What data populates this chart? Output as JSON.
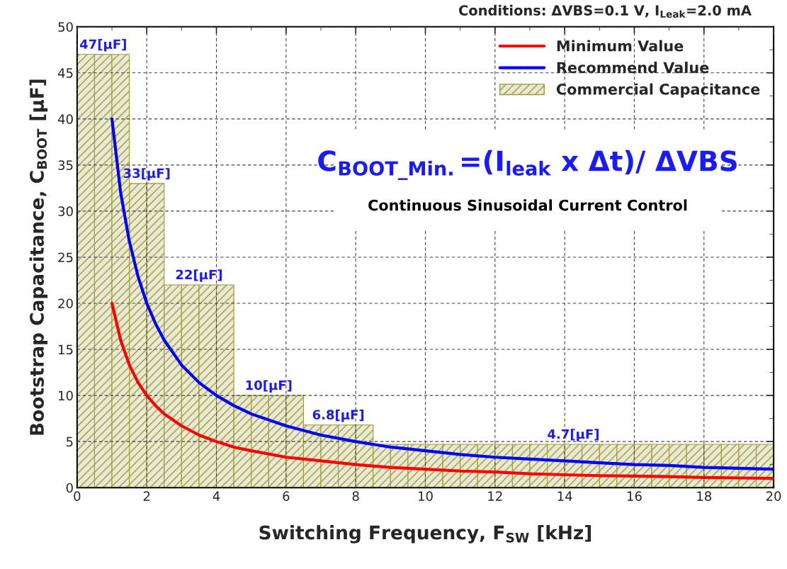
{
  "chart_data": {
    "type": "line",
    "title": "Conditions: ΔVBS=0.1 V, I$_{Leak}$=2.0 mA",
    "xlabel": "Switching Frequency, F$_{SW}$ [kHz]",
    "ylabel": "Bootstrap Capacitance, C$_{BOOT}$ [μF]",
    "series": [
      {
        "name": "Commercial Capacitance",
        "type": "histogram",
        "color": "#9a9a3a",
        "bins": [
          0,
          0.5,
          1,
          1.5,
          2,
          2.5,
          3,
          3.5,
          4,
          4.5,
          5,
          5.5,
          6,
          6.5,
          7,
          7.5,
          8,
          8.5,
          9,
          9.5,
          10,
          10.5,
          11,
          11.5,
          12,
          12.5,
          13,
          13.5,
          14,
          14.5,
          15,
          15.5,
          16,
          16.5,
          17,
          17.5,
          18,
          18.5,
          19,
          19.5,
          20
        ],
        "values": [
          47,
          47,
          47,
          33,
          33,
          22,
          22,
          22,
          22,
          10,
          10,
          10,
          10,
          6.8,
          6.8,
          6.8,
          6.8,
          4.7,
          4.7,
          4.7,
          4.7,
          4.7,
          4.7,
          4.7,
          4.7,
          4.7,
          4.7,
          4.7,
          4.7,
          4.7,
          4.7,
          4.7,
          4.7,
          4.7,
          4.7,
          4.7,
          4.7,
          4.7,
          4.7,
          4.7
        ]
      },
      {
        "name": "Minimum Value",
        "color": "#ff0000",
        "x": [
          1,
          1.25,
          1.5,
          1.75,
          2,
          2.25,
          2.5,
          3,
          3.5,
          4,
          4.5,
          5,
          6,
          7,
          8,
          9,
          10,
          11,
          12,
          13,
          14,
          15,
          16,
          17,
          18,
          19,
          20
        ],
        "values": [
          20,
          16,
          13.3,
          11.4,
          10,
          8.9,
          8,
          6.7,
          5.7,
          5,
          4.4,
          4,
          3.3,
          2.9,
          2.5,
          2.2,
          2,
          1.8,
          1.7,
          1.5,
          1.4,
          1.3,
          1.25,
          1.2,
          1.1,
          1.05,
          1.0
        ]
      },
      {
        "name": "Recommend Value",
        "color": "#0000ff",
        "x": [
          1,
          1.25,
          1.5,
          1.75,
          2,
          2.25,
          2.5,
          3,
          3.5,
          4,
          4.5,
          5,
          6,
          7,
          8,
          9,
          10,
          11,
          12,
          13,
          14,
          15,
          16,
          17,
          18,
          19,
          20
        ],
        "values": [
          40,
          32,
          26.7,
          22.9,
          20,
          17.8,
          16,
          13.3,
          11.4,
          10,
          8.9,
          8,
          6.7,
          5.7,
          5,
          4.4,
          4,
          3.6,
          3.3,
          3.1,
          2.9,
          2.7,
          2.5,
          2.4,
          2.2,
          2.1,
          2.0
        ]
      }
    ],
    "annotations": [
      {
        "text": "47[μF]",
        "x": 0.75,
        "y": 47
      },
      {
        "text": "33[μF]",
        "x": 2,
        "y": 33
      },
      {
        "text": "22[μF]",
        "x": 3.5,
        "y": 22
      },
      {
        "text": "10[μF]",
        "x": 5.5,
        "y": 10
      },
      {
        "text": "6.8[μF]",
        "x": 7.5,
        "y": 6.8
      },
      {
        "text": "4.7[μF]",
        "x": 14.25,
        "y": 4.7
      },
      "C$_{BOOT_Min.}$=(I$_{leak}$ x Δt)/ ΔVBS",
      "Continuous Sinusoidal Current Control"
    ],
    "xlim": [
      0,
      20
    ],
    "xticks": [
      0,
      2,
      4,
      6,
      8,
      10,
      12,
      14,
      16,
      18,
      20
    ],
    "ylim": [
      0,
      50
    ],
    "yticks": [
      0,
      5,
      10,
      15,
      20,
      25,
      30,
      35,
      40,
      45,
      50
    ],
    "grid": true,
    "legend": "top right"
  }
}
